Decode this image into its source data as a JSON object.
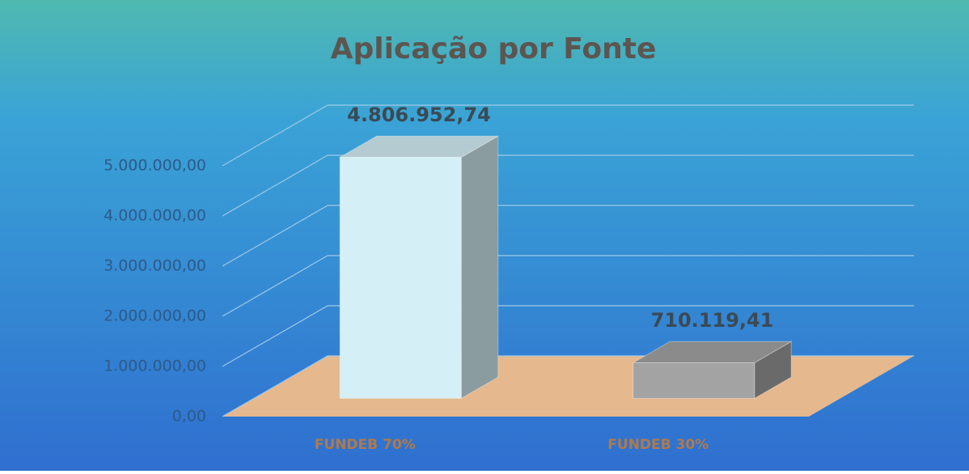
{
  "chart_data": {
    "type": "bar",
    "title": "Aplicação por Fonte",
    "categories": [
      "FUNDEB 70%",
      "FUNDEB 30%"
    ],
    "values": [
      4806952.74,
      710119.41
    ],
    "value_labels": [
      "4.806.952,74",
      "710.119,41"
    ],
    "colors": [
      "#d4f0f6",
      "#a3a3a3"
    ],
    "floor_color": "#e6b88e",
    "ylim": [
      0,
      5000000
    ],
    "yticks": [
      {
        "value": 0,
        "label": "0,00"
      },
      {
        "value": 1000000,
        "label": "1.000.000,00"
      },
      {
        "value": 2000000,
        "label": "2.000.000,00"
      },
      {
        "value": 3000000,
        "label": "3.000.000,00"
      },
      {
        "value": 4000000,
        "label": "4.000.000,00"
      },
      {
        "value": 5000000,
        "label": "5.000.000,00"
      }
    ],
    "grid": true
  }
}
